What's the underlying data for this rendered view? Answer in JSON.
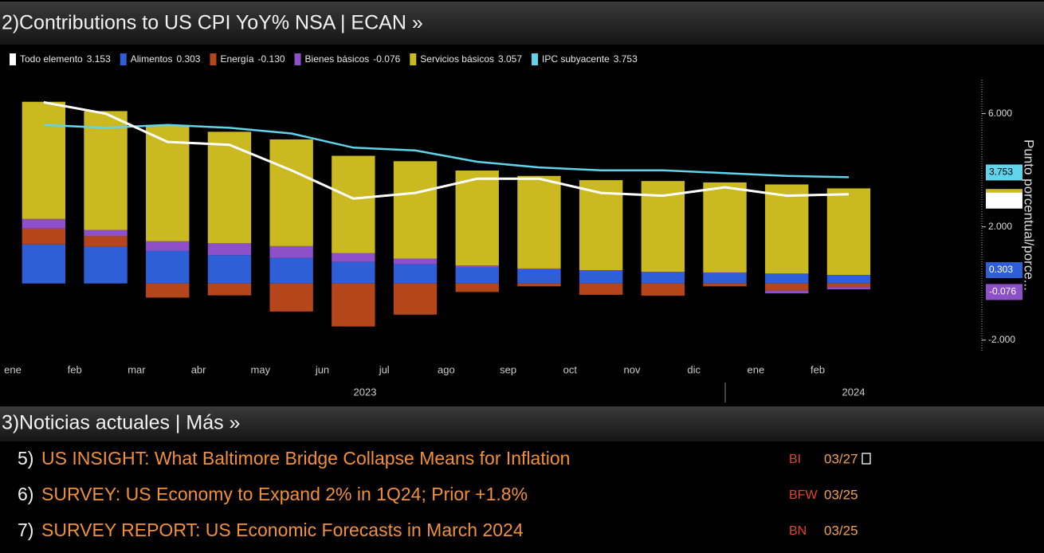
{
  "panel_number": "2)",
  "chart_data": {
    "type": "bar",
    "title": "Contributions to US CPI YoY% NSA | ECAN »",
    "y_axis_label": "Punto porcentual/porce...",
    "categories": [
      "ene",
      "feb",
      "mar",
      "abr",
      "may",
      "jun",
      "jul",
      "ago",
      "sep",
      "oct",
      "nov",
      "dic",
      "ene",
      "feb"
    ],
    "x_groups": [
      "2023",
      "2024"
    ],
    "series": [
      {
        "name": "Todo elemento",
        "type": "line",
        "color": "#ffffff",
        "values": [
          6.4,
          6.0,
          5.0,
          4.9,
          4.0,
          3.0,
          3.2,
          3.7,
          3.7,
          3.2,
          3.1,
          3.4,
          3.1,
          3.153
        ],
        "value_labels": [
          null,
          null,
          null,
          null,
          null,
          null,
          null,
          null,
          null,
          null,
          null,
          null,
          null,
          "3.153"
        ]
      },
      {
        "name": "Alimentos",
        "type": "bar",
        "color": "#2f5fd6",
        "values": [
          1.38,
          1.3,
          1.15,
          1.0,
          0.9,
          0.76,
          0.68,
          0.56,
          0.5,
          0.45,
          0.4,
          0.37,
          0.35,
          0.303
        ],
        "value_labels": [
          null,
          null,
          null,
          null,
          null,
          null,
          null,
          null,
          null,
          null,
          null,
          null,
          null,
          "0.303"
        ]
      },
      {
        "name": "Energía",
        "type": "bar",
        "color": "#b5461c",
        "values": [
          0.56,
          0.37,
          -0.5,
          -0.42,
          -0.99,
          -1.52,
          -1.1,
          -0.3,
          -0.1,
          -0.4,
          -0.43,
          -0.1,
          -0.25,
          -0.13
        ],
        "value_labels": [
          null,
          null,
          null,
          null,
          null,
          null,
          null,
          null,
          null,
          null,
          null,
          null,
          null,
          "-0.130"
        ]
      },
      {
        "name": "Bienes básicos",
        "type": "bar",
        "color": "#8e50c8",
        "values": [
          0.34,
          0.22,
          0.34,
          0.42,
          0.42,
          0.31,
          0.2,
          0.08,
          0.03,
          0.02,
          0.01,
          0.02,
          -0.1,
          -0.076
        ],
        "value_labels": [
          null,
          null,
          null,
          null,
          null,
          null,
          null,
          null,
          null,
          null,
          null,
          null,
          null,
          "-0.076"
        ]
      },
      {
        "name": "Servicios básicos",
        "type": "bar",
        "color": "#cbb921",
        "values": [
          4.14,
          4.2,
          4.11,
          3.94,
          3.77,
          3.44,
          3.44,
          3.35,
          3.27,
          3.18,
          3.21,
          3.18,
          3.15,
          3.057
        ],
        "value_labels": [
          null,
          null,
          null,
          null,
          null,
          null,
          null,
          null,
          null,
          null,
          null,
          null,
          null,
          "3.057"
        ]
      },
      {
        "name": "IPC subyacente",
        "type": "line",
        "color": "#5fd4ea",
        "values": [
          5.6,
          5.5,
          5.6,
          5.5,
          5.3,
          4.8,
          4.7,
          4.3,
          4.1,
          4.0,
          4.0,
          3.9,
          3.8,
          3.753
        ],
        "value_labels": [
          null,
          null,
          null,
          null,
          null,
          null,
          null,
          null,
          null,
          null,
          null,
          null,
          null,
          "3.753"
        ]
      }
    ],
    "ylim": [
      -2.4,
      7.2
    ],
    "yticks": [
      {
        "value": -2,
        "label": "-2.000"
      },
      {
        "value": 2,
        "label": "2.000"
      },
      {
        "value": 6,
        "label": "6.000"
      }
    ]
  },
  "news": {
    "panel_number": "3)",
    "title": "Noticias actuales | Más »",
    "items": [
      {
        "number": "5)",
        "headline": "US INSIGHT: What Baltimore Bridge Collapse Means for Inflation",
        "source": "BI",
        "date": "03/27"
      },
      {
        "number": "6)",
        "headline": "SURVEY: US Economy to Expand 2% in 1Q24; Prior +1.8%",
        "source": "BFW",
        "date": "03/25"
      },
      {
        "number": "7)",
        "headline": "SURVEY REPORT: US Economic Forecasts in March 2024",
        "source": "BN",
        "date": "03/25"
      }
    ]
  }
}
